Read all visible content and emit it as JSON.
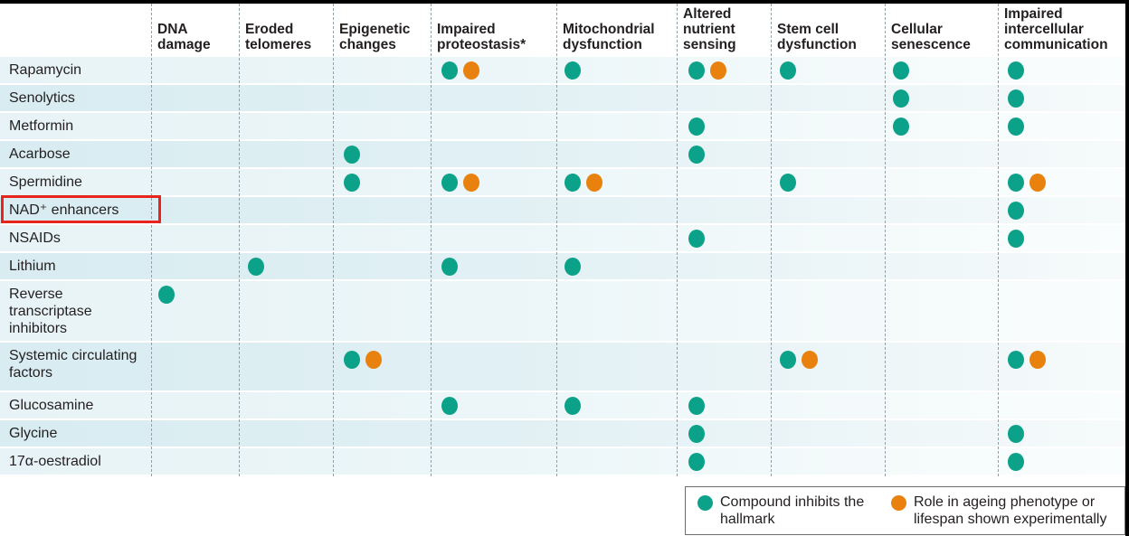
{
  "colors": {
    "inhibits_dot": "#0ca28a",
    "experimental_dot": "#e8810d",
    "highlight_box": "#e8251d",
    "row_stripe_dark": "#d8ecf1",
    "row_stripe_light": "#e7f3f6",
    "border": "#000000"
  },
  "chart_data": {
    "type": "table",
    "title": "",
    "description": "Dot matrix of candidate anti-ageing compounds (rows) versus hallmarks of ageing (columns); teal dot = compound inhibits the hallmark, orange dot = role in ageing phenotype or lifespan shown experimentally",
    "columns": [
      "DNA damage",
      "Eroded telomeres",
      "Epigenetic changes",
      "Impaired proteostasis*",
      "Mitochondrial dysfunction",
      "Altered nutrient sensing",
      "Stem cell dysfunction",
      "Cellular senescence",
      "Impaired intercellular communication"
    ],
    "highlighted_row": "NAD⁺ enhancers",
    "rows": [
      {
        "label": "Rapamycin",
        "marks": [
          {
            "col": 3,
            "dots": [
              "inhibits",
              "experimental"
            ]
          },
          {
            "col": 4,
            "dots": [
              "inhibits"
            ]
          },
          {
            "col": 5,
            "dots": [
              "inhibits",
              "experimental"
            ]
          },
          {
            "col": 6,
            "dots": [
              "inhibits"
            ]
          },
          {
            "col": 7,
            "dots": [
              "inhibits"
            ]
          },
          {
            "col": 8,
            "dots": [
              "inhibits"
            ]
          }
        ]
      },
      {
        "label": "Senolytics",
        "marks": [
          {
            "col": 7,
            "dots": [
              "inhibits"
            ]
          },
          {
            "col": 8,
            "dots": [
              "inhibits"
            ]
          }
        ]
      },
      {
        "label": "Metformin",
        "marks": [
          {
            "col": 5,
            "dots": [
              "inhibits"
            ]
          },
          {
            "col": 7,
            "dots": [
              "inhibits"
            ]
          },
          {
            "col": 8,
            "dots": [
              "inhibits"
            ]
          }
        ]
      },
      {
        "label": "Acarbose",
        "marks": [
          {
            "col": 2,
            "dots": [
              "inhibits"
            ]
          },
          {
            "col": 5,
            "dots": [
              "inhibits"
            ]
          }
        ]
      },
      {
        "label": "Spermidine",
        "marks": [
          {
            "col": 2,
            "dots": [
              "inhibits"
            ]
          },
          {
            "col": 3,
            "dots": [
              "inhibits",
              "experimental"
            ]
          },
          {
            "col": 4,
            "dots": [
              "inhibits",
              "experimental"
            ]
          },
          {
            "col": 6,
            "dots": [
              "inhibits"
            ]
          },
          {
            "col": 8,
            "dots": [
              "inhibits",
              "experimental"
            ]
          }
        ]
      },
      {
        "label": "NAD⁺ enhancers",
        "highlighted": true,
        "marks": [
          {
            "col": 8,
            "dots": [
              "inhibits"
            ]
          }
        ]
      },
      {
        "label": "NSAIDs",
        "marks": [
          {
            "col": 5,
            "dots": [
              "inhibits"
            ]
          },
          {
            "col": 8,
            "dots": [
              "inhibits"
            ]
          }
        ]
      },
      {
        "label": "Lithium",
        "marks": [
          {
            "col": 1,
            "dots": [
              "inhibits"
            ]
          },
          {
            "col": 3,
            "dots": [
              "inhibits"
            ]
          },
          {
            "col": 4,
            "dots": [
              "inhibits"
            ]
          }
        ]
      },
      {
        "label": "Reverse transcriptase inhibitors",
        "marks": [
          {
            "col": 0,
            "dots": [
              "inhibits"
            ]
          }
        ]
      },
      {
        "label": "Systemic circulating factors",
        "marks": [
          {
            "col": 2,
            "dots": [
              "inhibits",
              "experimental"
            ]
          },
          {
            "col": 6,
            "dots": [
              "inhibits",
              "experimental"
            ]
          },
          {
            "col": 8,
            "dots": [
              "inhibits",
              "experimental"
            ]
          }
        ]
      },
      {
        "label": "Glucosamine",
        "marks": [
          {
            "col": 3,
            "dots": [
              "inhibits"
            ]
          },
          {
            "col": 4,
            "dots": [
              "inhibits"
            ]
          },
          {
            "col": 5,
            "dots": [
              "inhibits"
            ]
          }
        ]
      },
      {
        "label": "Glycine",
        "marks": [
          {
            "col": 5,
            "dots": [
              "inhibits"
            ]
          },
          {
            "col": 8,
            "dots": [
              "inhibits"
            ]
          }
        ]
      },
      {
        "label": "17α-oestradiol",
        "marks": [
          {
            "col": 5,
            "dots": [
              "inhibits"
            ]
          },
          {
            "col": 8,
            "dots": [
              "inhibits"
            ]
          }
        ]
      }
    ],
    "legend": [
      {
        "type": "inhibits",
        "color": "#0ca28a",
        "label": "Compound inhibits the hallmark"
      },
      {
        "type": "experimental",
        "color": "#e8810d",
        "label": "Role in ageing phenotype or lifespan shown experimentally"
      }
    ],
    "legend_position": "bottom-right",
    "grid": "dashed-vertical"
  }
}
